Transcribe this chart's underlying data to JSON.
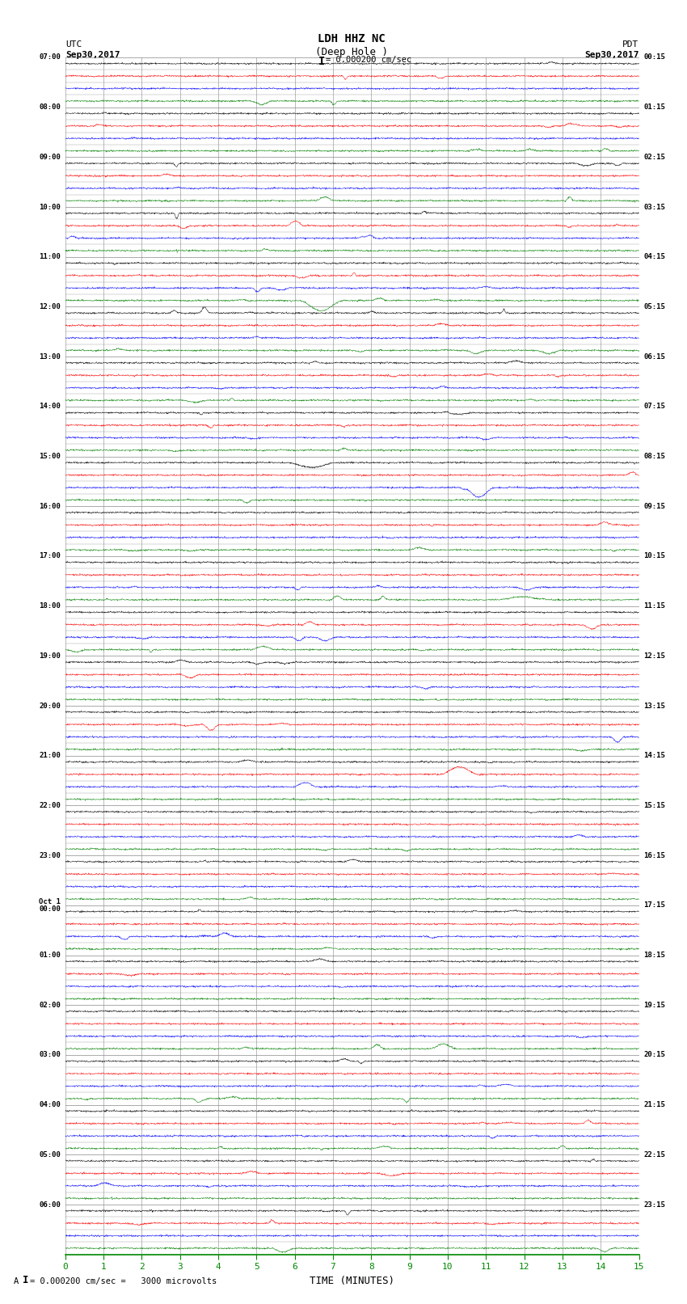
{
  "title_line1": "LDH HHZ NC",
  "title_line2": "(Deep Hole )",
  "scale_text": "= 0.000200 cm/sec",
  "left_header1": "UTC",
  "left_header2": "Sep30,2017",
  "right_header1": "PDT",
  "right_header2": "Sep30,2017",
  "xlabel": "TIME (MINUTES)",
  "footer_text": "= 0.000200 cm/sec =   3000 microvolts",
  "footer_prefix": "A",
  "xmin": 0,
  "xmax": 15,
  "fig_width": 8.5,
  "fig_height": 16.13,
  "dpi": 100,
  "left_times": [
    "07:00",
    "",
    "",
    "",
    "08:00",
    "",
    "",
    "",
    "09:00",
    "",
    "",
    "",
    "10:00",
    "",
    "",
    "",
    "11:00",
    "",
    "",
    "",
    "12:00",
    "",
    "",
    "",
    "13:00",
    "",
    "",
    "",
    "14:00",
    "",
    "",
    "",
    "15:00",
    "",
    "",
    "",
    "16:00",
    "",
    "",
    "",
    "17:00",
    "",
    "",
    "",
    "18:00",
    "",
    "",
    "",
    "19:00",
    "",
    "",
    "",
    "20:00",
    "",
    "",
    "",
    "21:00",
    "",
    "",
    "",
    "22:00",
    "",
    "",
    "",
    "23:00",
    "",
    "",
    "",
    "Oct 1",
    "",
    "",
    "",
    "01:00",
    "",
    "",
    "",
    "02:00",
    "",
    "",
    "",
    "03:00",
    "",
    "",
    "",
    "04:00",
    "",
    "",
    "",
    "05:00",
    "",
    "",
    "",
    "06:00",
    "",
    "",
    ""
  ],
  "left_times_sub": [
    "",
    "",
    "",
    "",
    "",
    "",
    "",
    "",
    "",
    "",
    "",
    "",
    "",
    "",
    "",
    "",
    "",
    "",
    "",
    "",
    "",
    "",
    "",
    "",
    "",
    "",
    "",
    "",
    "",
    "",
    "",
    "",
    "",
    "",
    "",
    "",
    "",
    "",
    "",
    "",
    "",
    "",
    "",
    "",
    "",
    "",
    "",
    "",
    "",
    "",
    "",
    "",
    "",
    "",
    "",
    "",
    "",
    "",
    "",
    "",
    "",
    "",
    "",
    "",
    "",
    "",
    "",
    "",
    "00:00",
    "",
    "",
    "",
    "",
    "",
    "",
    "",
    "",
    "",
    "",
    "",
    "",
    "",
    "",
    "",
    "",
    "",
    "",
    "",
    "",
    "",
    "",
    "",
    "",
    "",
    "",
    ""
  ],
  "right_times": [
    "00:15",
    "",
    "",
    "",
    "01:15",
    "",
    "",
    "",
    "02:15",
    "",
    "",
    "",
    "03:15",
    "",
    "",
    "",
    "04:15",
    "",
    "",
    "",
    "05:15",
    "",
    "",
    "",
    "06:15",
    "",
    "",
    "",
    "07:15",
    "",
    "",
    "",
    "08:15",
    "",
    "",
    "",
    "09:15",
    "",
    "",
    "",
    "10:15",
    "",
    "",
    "",
    "11:15",
    "",
    "",
    "",
    "12:15",
    "",
    "",
    "",
    "13:15",
    "",
    "",
    "",
    "14:15",
    "",
    "",
    "",
    "15:15",
    "",
    "",
    "",
    "16:15",
    "",
    "",
    "",
    "17:15",
    "",
    "",
    "",
    "18:15",
    "",
    "",
    "",
    "19:15",
    "",
    "",
    "",
    "20:15",
    "",
    "",
    "",
    "21:15",
    "",
    "",
    "",
    "22:15",
    "",
    "",
    "",
    "23:15",
    "",
    "",
    ""
  ],
  "trace_colors": [
    "black",
    "red",
    "blue",
    "green"
  ],
  "noise_scale": 0.28,
  "background_color": "#ffffff",
  "grid_color": "#888888",
  "xticks": [
    0,
    1,
    2,
    3,
    4,
    5,
    6,
    7,
    8,
    9,
    10,
    11,
    12,
    13,
    14,
    15
  ],
  "bottom_color": "#008800"
}
